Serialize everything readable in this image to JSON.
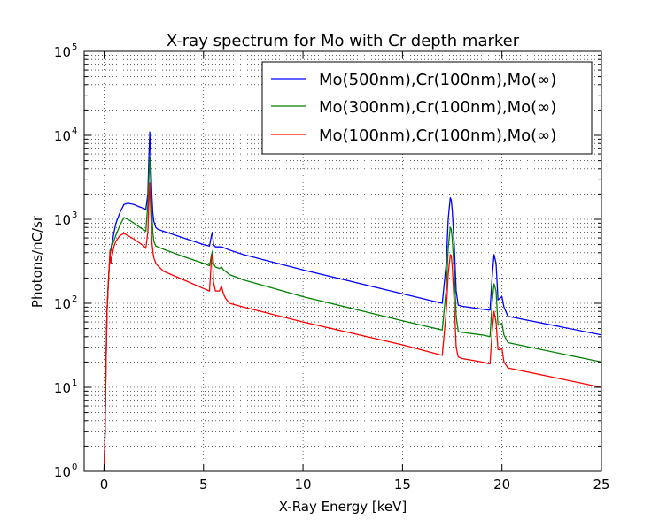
{
  "chart_data": {
    "type": "line",
    "title": "X-ray spectrum for Mo with Cr depth marker",
    "xlabel": "X-Ray Energy [keV]",
    "ylabel": "Photons/nC/sr",
    "xlim": [
      -1,
      25
    ],
    "ylim": [
      1,
      100000
    ],
    "yscale": "log",
    "grid": true,
    "legend_position": "top-right",
    "x_ticks": [
      0,
      5,
      10,
      15,
      20,
      25
    ],
    "x_tick_labels": [
      "0",
      "5",
      "10",
      "15",
      "20",
      "25"
    ],
    "y_ticks": [
      1,
      10,
      100,
      1000,
      10000,
      100000
    ],
    "y_tick_base": "10",
    "y_tick_exponents": [
      "0",
      "1",
      "2",
      "3",
      "4",
      "5"
    ],
    "series": [
      {
        "name": "Mo(500nm),Cr(100nm),Mo(∞)",
        "color": "#0000ff",
        "x": [
          0.0,
          0.05,
          0.1,
          0.15,
          0.2,
          0.25,
          0.3,
          0.35,
          0.4,
          0.45,
          0.5,
          0.6,
          0.8,
          1.0,
          1.2,
          1.5,
          1.8,
          2.0,
          2.1,
          2.2,
          2.25,
          2.3,
          2.35,
          2.4,
          2.45,
          2.5,
          2.6,
          2.7,
          3.0,
          4.0,
          5.0,
          5.3,
          5.4,
          5.45,
          5.5,
          5.6,
          5.8,
          5.9,
          6.0,
          6.1,
          6.3,
          7.0,
          10.0,
          15.0,
          17.0,
          17.2,
          17.3,
          17.4,
          17.45,
          17.5,
          17.6,
          17.7,
          17.8,
          18.0,
          19.0,
          19.4,
          19.5,
          19.6,
          19.7,
          19.8,
          19.9,
          20.0,
          20.1,
          20.3,
          25.0
        ],
        "y": [
          1.0,
          3.0,
          20,
          80,
          150,
          250,
          380,
          450,
          520,
          600,
          700,
          900,
          1200,
          1500,
          1550,
          1500,
          1400,
          1350,
          1300,
          2000,
          5000,
          11000,
          5000,
          2000,
          1200,
          950,
          800,
          760,
          720,
          600,
          500,
          480,
          650,
          700,
          500,
          470,
          470,
          470,
          460,
          450,
          430,
          380,
          250,
          130,
          100,
          300,
          1000,
          1800,
          1700,
          1300,
          500,
          140,
          95,
          92,
          85,
          83,
          200,
          380,
          300,
          110,
          115,
          120,
          90,
          70,
          42
        ]
      },
      {
        "name": "Mo(300nm),Cr(100nm),Mo(∞)",
        "color": "#008000",
        "x": [
          0.0,
          0.05,
          0.1,
          0.15,
          0.2,
          0.25,
          0.3,
          0.35,
          0.4,
          0.45,
          0.5,
          0.6,
          0.8,
          1.0,
          1.2,
          1.5,
          1.8,
          2.0,
          2.1,
          2.2,
          2.25,
          2.3,
          2.35,
          2.4,
          2.45,
          2.5,
          2.6,
          2.7,
          3.0,
          4.0,
          5.0,
          5.3,
          5.4,
          5.45,
          5.5,
          5.6,
          5.8,
          5.9,
          6.0,
          6.1,
          6.3,
          7.0,
          10.0,
          15.0,
          17.0,
          17.2,
          17.3,
          17.4,
          17.45,
          17.5,
          17.6,
          17.7,
          17.8,
          18.0,
          19.0,
          19.4,
          19.5,
          19.6,
          19.7,
          19.8,
          19.9,
          20.0,
          20.1,
          20.3,
          25.0
        ],
        "y": [
          1.0,
          3.0,
          20,
          80,
          150,
          250,
          380,
          430,
          480,
          520,
          560,
          650,
          850,
          1050,
          1000,
          900,
          800,
          750,
          720,
          1500,
          3000,
          5500,
          2500,
          1200,
          700,
          550,
          480,
          470,
          440,
          360,
          300,
          280,
          380,
          420,
          300,
          270,
          260,
          270,
          250,
          240,
          220,
          190,
          120,
          62,
          48,
          150,
          450,
          800,
          760,
          600,
          240,
          70,
          46,
          45,
          42,
          40,
          100,
          170,
          140,
          55,
          56,
          58,
          42,
          34,
          20
        ]
      },
      {
        "name": "Mo(100nm),Cr(100nm),Mo(∞)",
        "color": "#ff0000",
        "x": [
          0.0,
          0.05,
          0.1,
          0.15,
          0.2,
          0.25,
          0.3,
          0.35,
          0.4,
          0.45,
          0.5,
          0.6,
          0.8,
          1.0,
          1.2,
          1.5,
          1.8,
          2.0,
          2.1,
          2.2,
          2.25,
          2.3,
          2.35,
          2.4,
          2.45,
          2.5,
          2.6,
          2.7,
          3.0,
          4.0,
          5.0,
          5.3,
          5.4,
          5.45,
          5.5,
          5.6,
          5.8,
          5.9,
          6.0,
          6.1,
          6.3,
          7.0,
          10.0,
          15.0,
          17.0,
          17.2,
          17.3,
          17.4,
          17.45,
          17.5,
          17.6,
          17.7,
          17.8,
          18.0,
          19.0,
          19.4,
          19.5,
          19.6,
          19.7,
          19.8,
          19.9,
          20.0,
          20.1,
          20.3,
          25.0
        ],
        "y": [
          1.0,
          3.0,
          20,
          80,
          150,
          250,
          430,
          300,
          360,
          420,
          480,
          550,
          640,
          680,
          640,
          580,
          520,
          480,
          450,
          700,
          1500,
          2700,
          1200,
          550,
          420,
          350,
          300,
          280,
          240,
          190,
          150,
          140,
          350,
          380,
          180,
          140,
          140,
          160,
          130,
          115,
          100,
          90,
          60,
          32,
          24,
          80,
          220,
          380,
          370,
          280,
          100,
          30,
          23,
          22,
          20,
          19,
          45,
          80,
          60,
          28,
          28,
          29,
          20,
          17,
          10
        ]
      }
    ]
  }
}
